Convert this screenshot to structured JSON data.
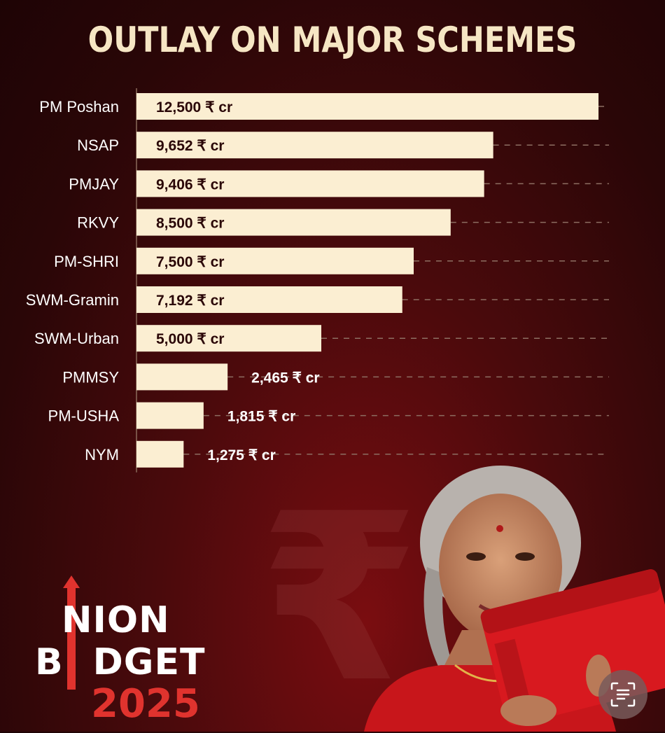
{
  "title": "OUTLAY ON MAJOR SCHEMES",
  "chart_data": {
    "type": "bar",
    "orientation": "horizontal",
    "title": "OUTLAY ON MAJOR SCHEMES",
    "categories": [
      "PM Poshan",
      "NSAP",
      "PMJAY",
      "RKVY",
      "PM-SHRI",
      "SWM-Gramin",
      "SWM-Urban",
      "PMMSY",
      "PM-USHA",
      "NYM"
    ],
    "values": [
      12500,
      9652,
      9406,
      8500,
      7500,
      7192,
      5000,
      2465,
      1815,
      1275
    ],
    "value_labels": [
      "12,500 ₹ cr",
      "9,652 ₹ cr",
      "9,406 ₹ cr",
      "8,500 ₹ cr",
      "7,500 ₹ cr",
      "7,192 ₹ cr",
      "5,000 ₹ cr",
      "2,465 ₹ cr",
      "1,815 ₹ cr",
      "1,275 ₹ cr"
    ],
    "unit": "₹ cr",
    "xlim": [
      0,
      12500
    ],
    "grid": "dashed horizontal leader lines",
    "bar_color": "#fbeed2"
  },
  "logo": {
    "line1": "NION",
    "line2": "B DGET",
    "line2_a": "B",
    "line2_b": "DGET",
    "year": "2025"
  },
  "colors": {
    "background": "#3a0809",
    "title": "#f6e6c4",
    "bar": "#fbeed2",
    "label": "#ffffff",
    "accent": "#e0332e"
  },
  "icons": {
    "rupee": "rupee-symbol-icon",
    "scan": "text-scan-icon"
  },
  "rupee_symbol": "₹"
}
